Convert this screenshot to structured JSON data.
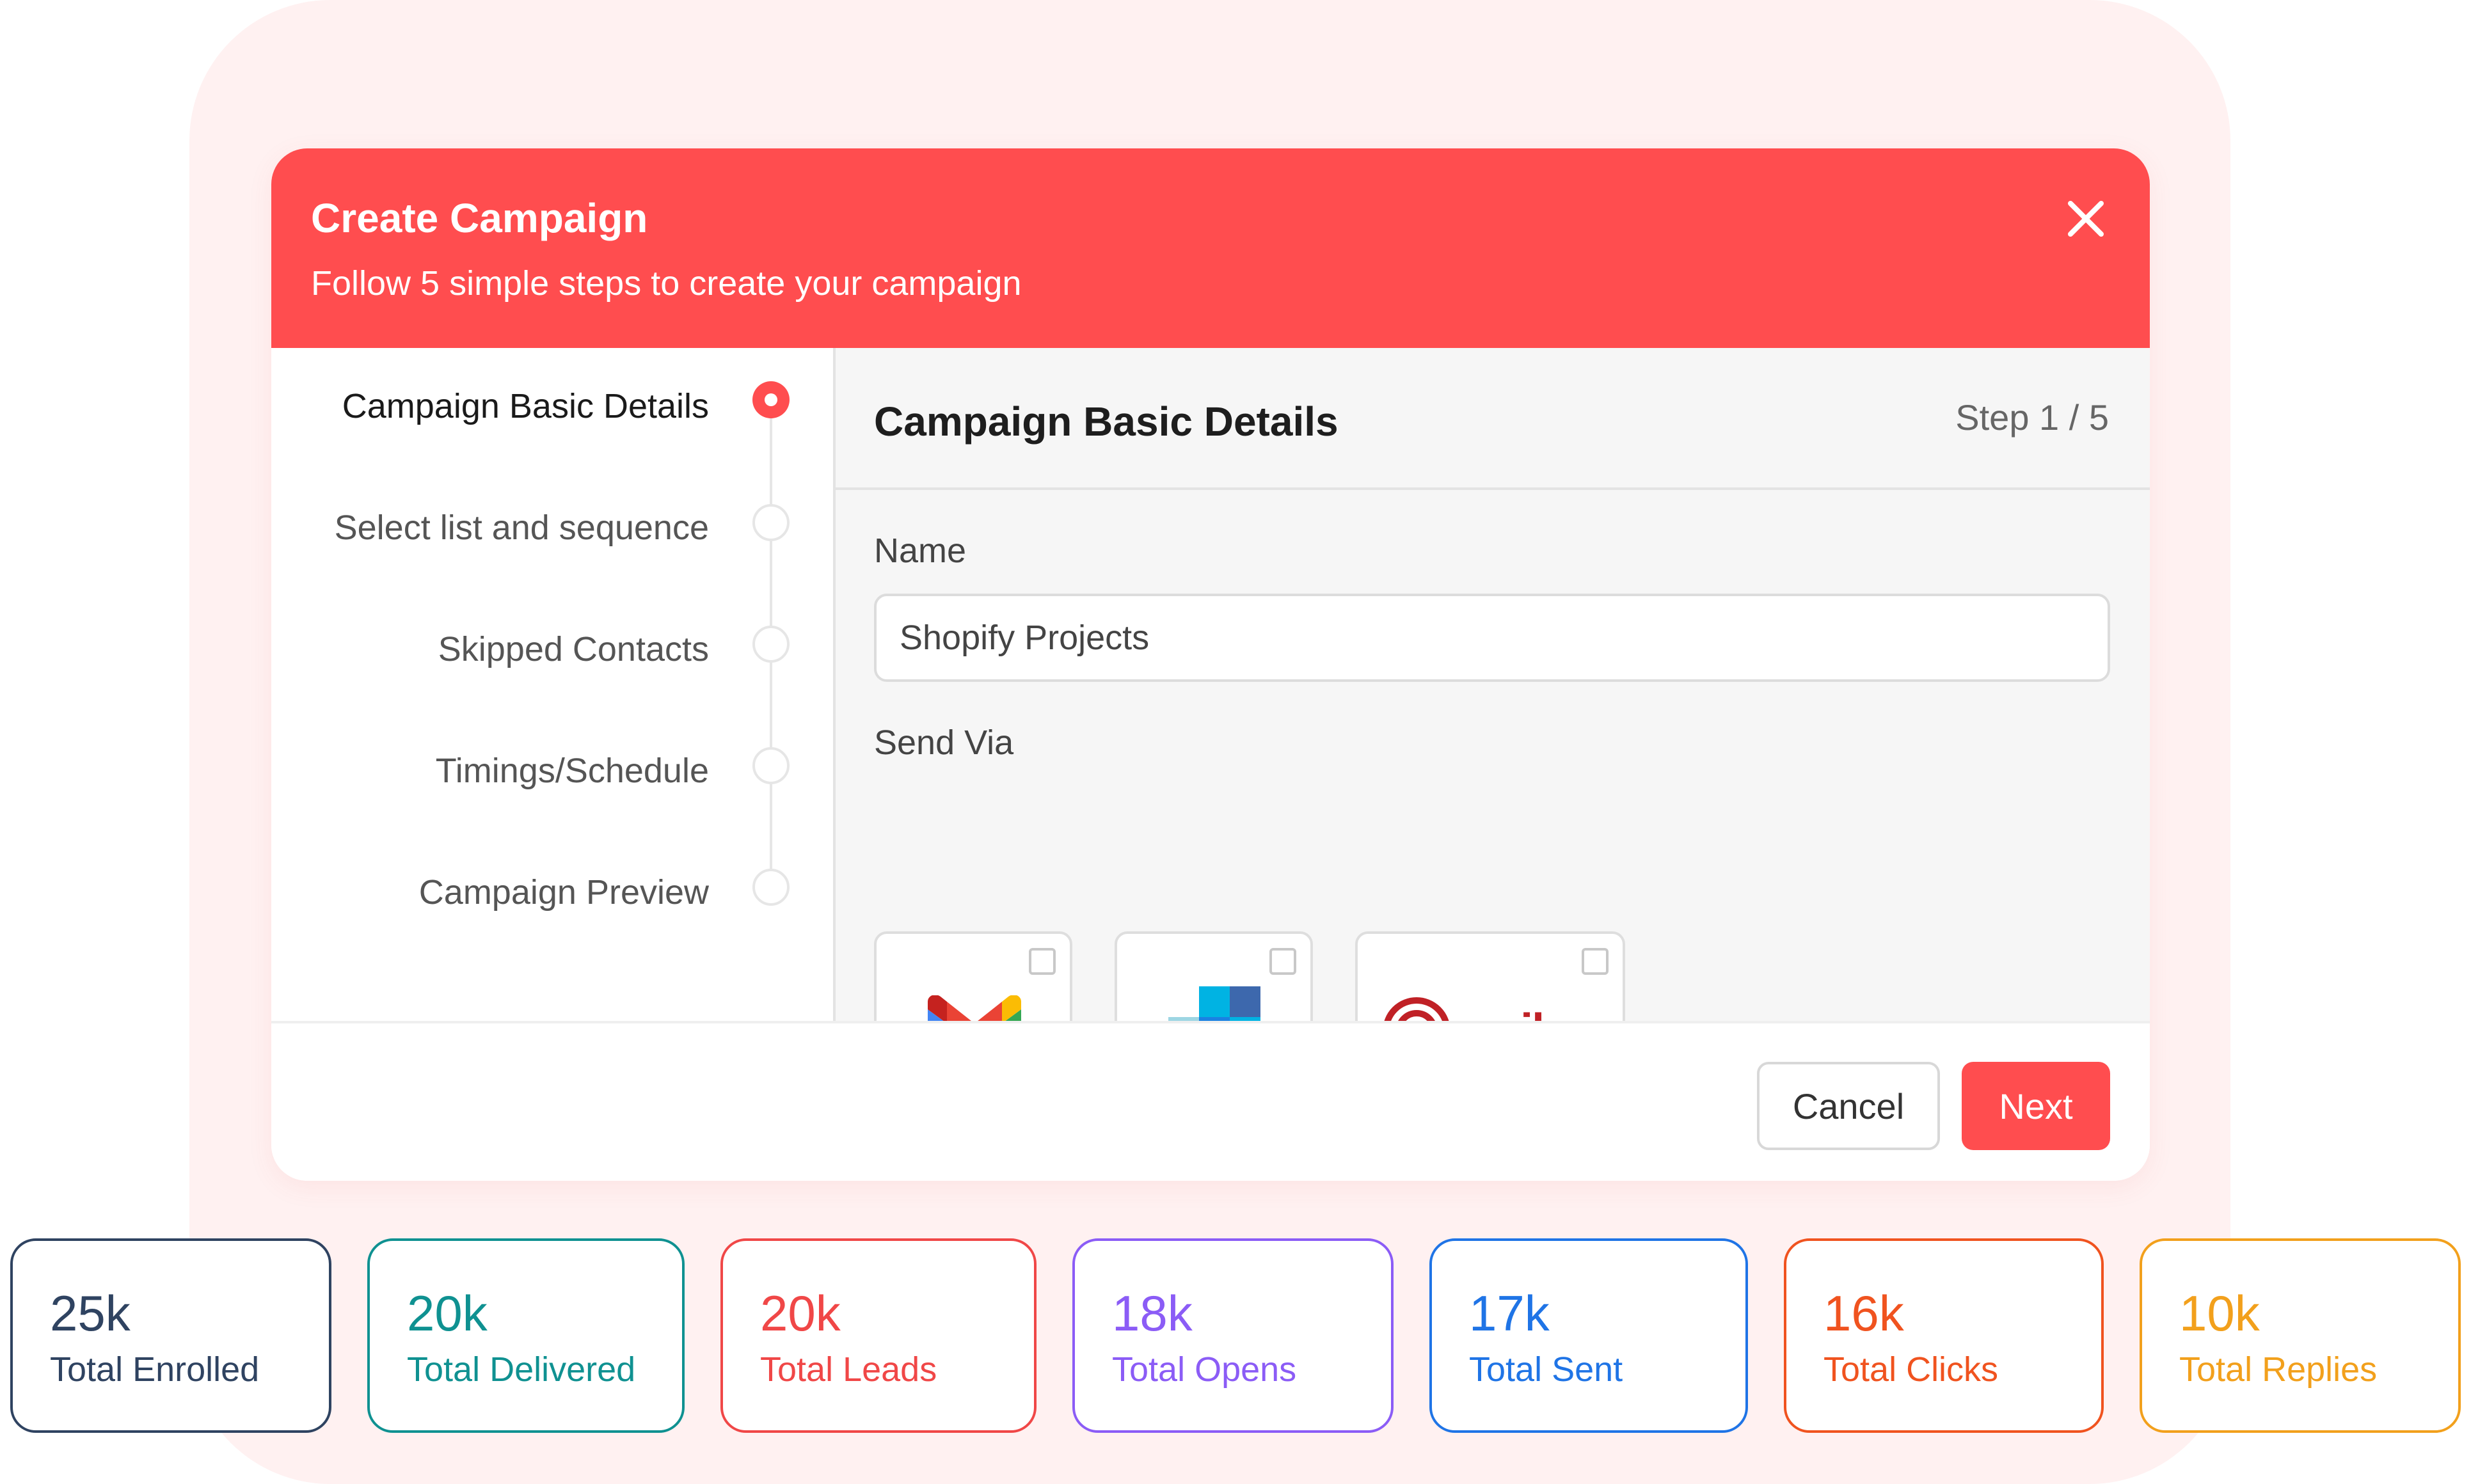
{
  "modal": {
    "title": "Create Campaign",
    "subtitle": "Follow 5 simple steps to create your campaign",
    "close_icon": "close-icon"
  },
  "steps": [
    {
      "label": "Campaign Basic Details",
      "active": true
    },
    {
      "label": "Select list and sequence",
      "active": false
    },
    {
      "label": "Skipped Contacts",
      "active": false
    },
    {
      "label": "Timings/Schedule",
      "active": false
    },
    {
      "label": "Campaign Preview",
      "active": false
    }
  ],
  "content": {
    "title": "Campaign Basic Details",
    "step_count": "Step 1 / 5",
    "name_label": "Name",
    "name_value": "Shopify Projects",
    "send_via_label": "Send Via",
    "providers": [
      {
        "name": "gmail-logo",
        "checked": false
      },
      {
        "name": "sendgrid-logo",
        "checked": false
      },
      {
        "name": "mailgun-logo",
        "text": "mailgun",
        "checked": false
      }
    ]
  },
  "footer": {
    "cancel_label": "Cancel",
    "next_label": "Next"
  },
  "stats": [
    {
      "value": "25k",
      "label": "Total Enrolled",
      "color": "#2f4361"
    },
    {
      "value": "20k",
      "label": "Total Delivered",
      "color": "#0f9191"
    },
    {
      "value": "20k",
      "label": "Total Leads",
      "color": "#f04747"
    },
    {
      "value": "18k",
      "label": "Total Opens",
      "color": "#8b5cf6"
    },
    {
      "value": "17k",
      "label": "Total Sent",
      "color": "#1f74e6"
    },
    {
      "value": "16k",
      "label": "Total Clicks",
      "color": "#f0531f"
    },
    {
      "value": "10k",
      "label": "Total Replies",
      "color": "#f2a01c"
    }
  ],
  "colors": {
    "accent": "#ff4d4f",
    "background_panel": "#fff1f1"
  }
}
